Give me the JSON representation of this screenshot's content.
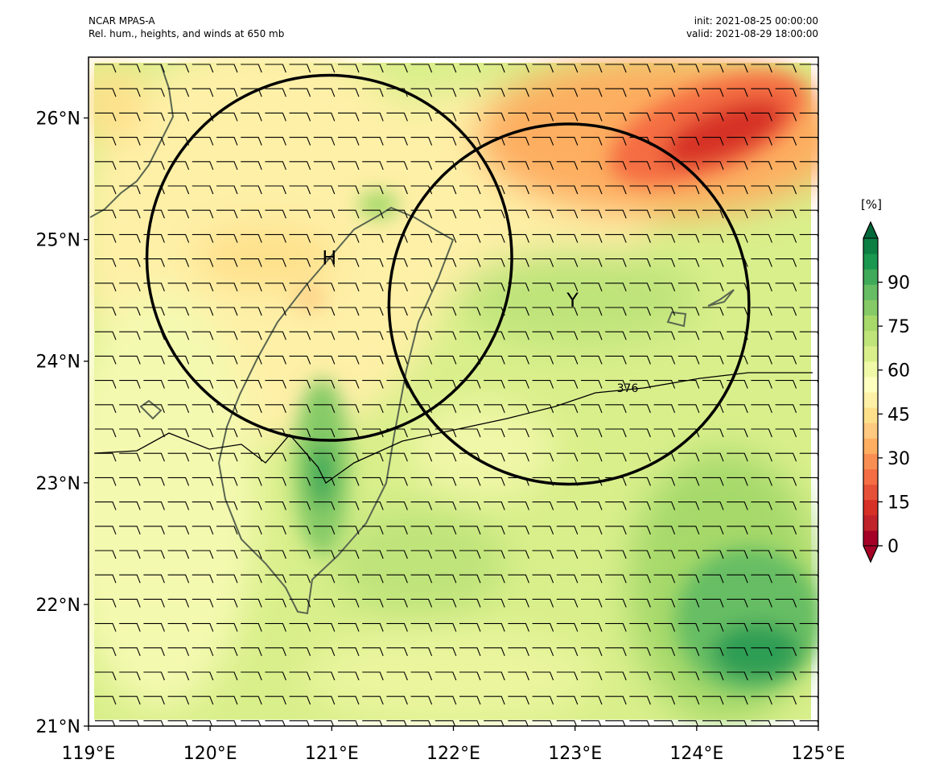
{
  "header": {
    "model": "NCAR MPAS-A",
    "description": "Rel. hum., heights, and winds at 650 mb",
    "init": "init: 2021-08-25 00:00:00",
    "valid": "valid: 2021-08-29 18:00:00"
  },
  "map": {
    "lon_range": [
      119,
      125
    ],
    "lat_range": [
      21,
      26.5
    ],
    "x_ticks": [
      "119°E",
      "120°E",
      "121°E",
      "122°E",
      "123°E",
      "124°E",
      "125°E"
    ],
    "y_ticks": [
      "21°N",
      "22°N",
      "23°N",
      "24°N",
      "25°N",
      "26°N"
    ],
    "markers": [
      {
        "label": "H",
        "lon": 120.98,
        "lat": 24.85
      },
      {
        "label": "Y",
        "lon": 122.98,
        "lat": 24.5
      }
    ],
    "circles": [
      {
        "center_lon": 120.98,
        "center_lat": 24.85,
        "radius_deg": 1.5
      },
      {
        "center_lon": 122.95,
        "center_lat": 24.47,
        "radius_deg": 1.48
      }
    ],
    "contour_label": "376",
    "wind_barbs": "mostly easterly, ~10 kt across domain"
  },
  "colorbar": {
    "unit": "[%]",
    "ticks": [
      "0",
      "15",
      "30",
      "45",
      "60",
      "75",
      "90"
    ],
    "colors": [
      "#a50026",
      "#c1232a",
      "#d73027",
      "#e65036",
      "#f46d43",
      "#f98e52",
      "#fdae61",
      "#fec980",
      "#fee08b",
      "#fef0a7",
      "#ffffbf",
      "#f0f9a8",
      "#d9ef8b",
      "#bfe47a",
      "#a6d96a",
      "#85ca66",
      "#66bd63",
      "#3faa59",
      "#1a9850",
      "#0c7f43"
    ],
    "extend": "both"
  }
}
